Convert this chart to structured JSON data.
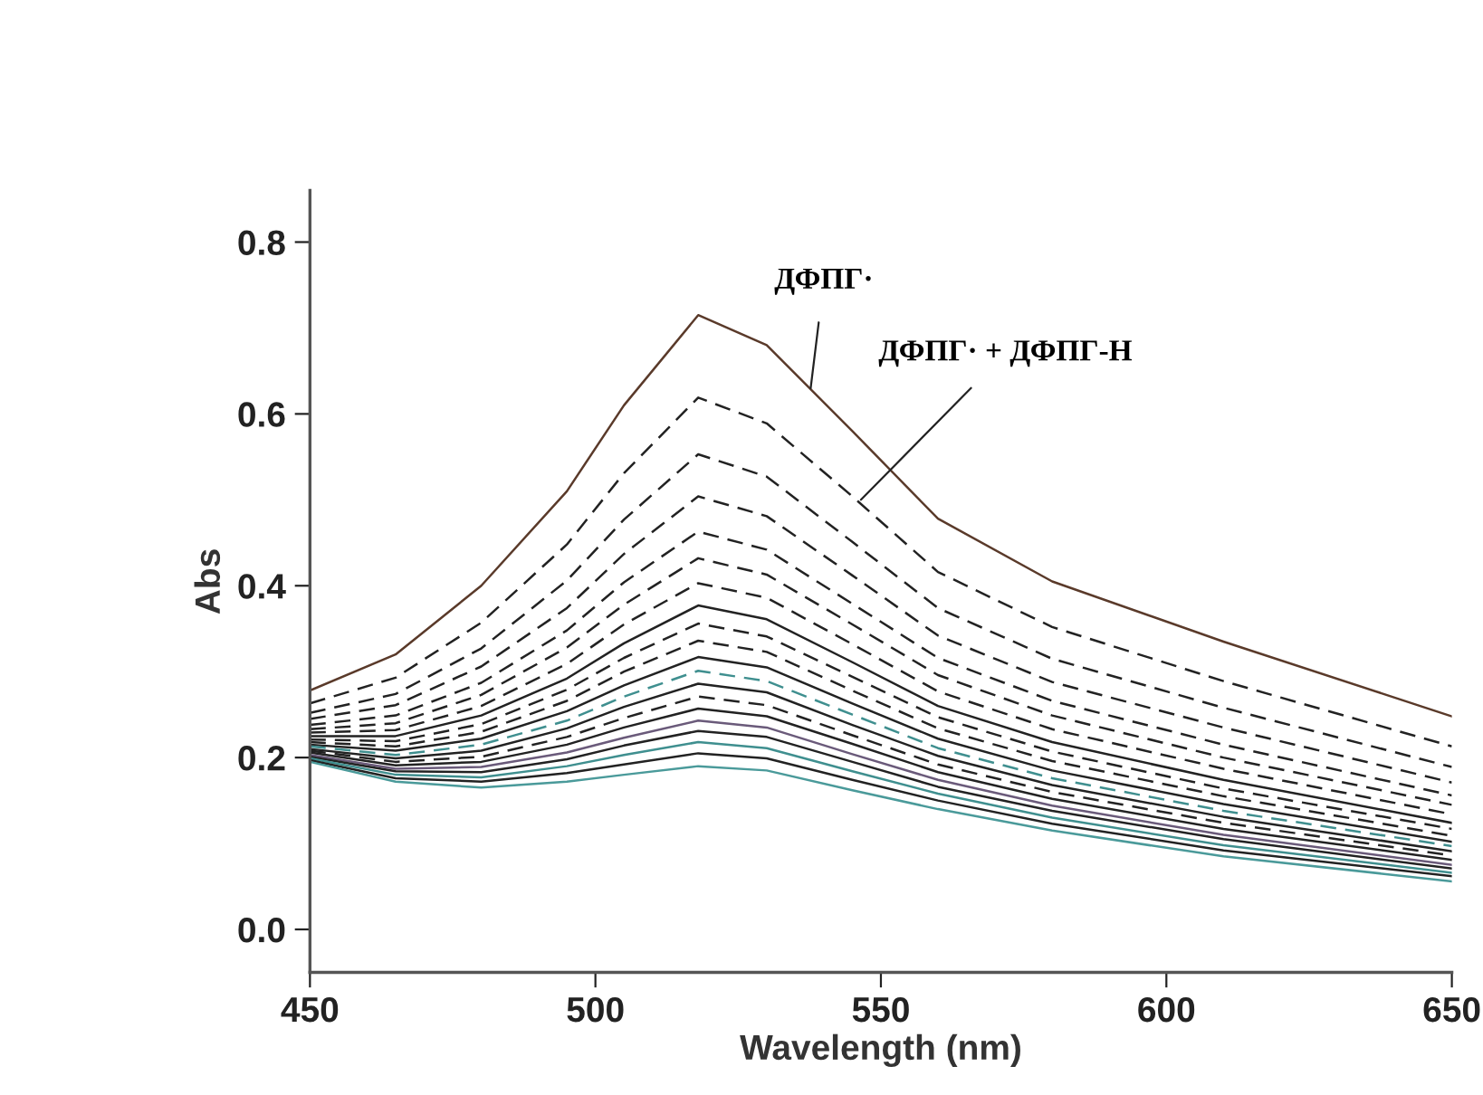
{
  "chart_data": {
    "type": "line",
    "xlabel": "Wavelength (nm)",
    "ylabel": "Abs",
    "xlim": [
      450,
      650
    ],
    "xticks": [
      450,
      500,
      550,
      600,
      650
    ],
    "ylim": [
      -0.05,
      0.86
    ],
    "yticks": [
      {
        "value": 0.0,
        "label": "0.0"
      },
      {
        "value": 0.2,
        "label": "0.2"
      },
      {
        "value": 0.4,
        "label": "0.4"
      },
      {
        "value": 0.6,
        "label": "0.6"
      },
      {
        "value": 0.8,
        "label": "0.8"
      }
    ],
    "x": [
      450,
      465,
      480,
      495,
      505,
      518,
      530,
      545,
      560,
      580,
      610,
      650
    ],
    "grid": false,
    "legend": false,
    "marker": "none",
    "series": [
      {
        "color": "#5a3a2a",
        "line_style": "solid",
        "values": [
          0.278,
          0.32,
          0.4,
          0.51,
          0.61,
          0.715,
          0.68,
          0.58,
          0.478,
          0.405,
          0.335,
          0.248
        ]
      },
      {
        "color": "#222222",
        "line_style": "dashed",
        "values": [
          0.263,
          0.293,
          0.357,
          0.448,
          0.531,
          0.619,
          0.589,
          0.504,
          0.416,
          0.352,
          0.289,
          0.213
        ]
      },
      {
        "color": "#222222",
        "line_style": "dashed",
        "values": [
          0.252,
          0.274,
          0.327,
          0.406,
          0.477,
          0.553,
          0.527,
          0.451,
          0.374,
          0.315,
          0.258,
          0.189
        ]
      },
      {
        "color": "#222222",
        "line_style": "dashed",
        "values": [
          0.245,
          0.261,
          0.306,
          0.374,
          0.437,
          0.504,
          0.481,
          0.412,
          0.342,
          0.288,
          0.235,
          0.171
        ]
      },
      {
        "color": "#222222",
        "line_style": "dashed",
        "values": [
          0.238,
          0.249,
          0.287,
          0.348,
          0.404,
          0.463,
          0.442,
          0.379,
          0.316,
          0.266,
          0.215,
          0.156
        ]
      },
      {
        "color": "#222222",
        "line_style": "dashed",
        "values": [
          0.233,
          0.24,
          0.273,
          0.328,
          0.378,
          0.432,
          0.413,
          0.355,
          0.296,
          0.249,
          0.2,
          0.145
        ]
      },
      {
        "color": "#222222",
        "line_style": "dashed",
        "values": [
          0.229,
          0.232,
          0.26,
          0.309,
          0.355,
          0.403,
          0.386,
          0.332,
          0.277,
          0.233,
          0.187,
          0.134
        ]
      },
      {
        "color": "#222222",
        "line_style": "solid",
        "values": [
          0.225,
          0.225,
          0.249,
          0.292,
          0.333,
          0.377,
          0.361,
          0.311,
          0.26,
          0.218,
          0.174,
          0.124
        ]
      },
      {
        "color": "#222222",
        "line_style": "dashed",
        "values": [
          0.221,
          0.219,
          0.239,
          0.279,
          0.316,
          0.356,
          0.341,
          0.294,
          0.247,
          0.207,
          0.164,
          0.117
        ]
      },
      {
        "color": "#222222",
        "line_style": "dashed",
        "values": [
          0.218,
          0.213,
          0.23,
          0.266,
          0.3,
          0.336,
          0.323,
          0.278,
          0.234,
          0.196,
          0.155,
          0.109
        ]
      },
      {
        "color": "#222222",
        "line_style": "solid",
        "values": [
          0.215,
          0.208,
          0.222,
          0.254,
          0.284,
          0.317,
          0.305,
          0.263,
          0.222,
          0.185,
          0.146,
          0.102
        ]
      },
      {
        "color": "#3f8f8f",
        "line_style": "dashed",
        "values": [
          0.213,
          0.203,
          0.215,
          0.243,
          0.271,
          0.301,
          0.289,
          0.25,
          0.211,
          0.176,
          0.138,
          0.097
        ]
      },
      {
        "color": "#222222",
        "line_style": "solid",
        "values": [
          0.21,
          0.199,
          0.208,
          0.234,
          0.259,
          0.286,
          0.276,
          0.238,
          0.202,
          0.168,
          0.131,
          0.091
        ]
      },
      {
        "color": "#222222",
        "line_style": "dashed",
        "values": [
          0.208,
          0.195,
          0.201,
          0.224,
          0.246,
          0.271,
          0.261,
          0.226,
          0.192,
          0.16,
          0.124,
          0.086
        ]
      },
      {
        "color": "#222222",
        "line_style": "solid",
        "values": [
          0.206,
          0.191,
          0.195,
          0.215,
          0.235,
          0.257,
          0.248,
          0.216,
          0.183,
          0.152,
          0.117,
          0.081
        ]
      },
      {
        "color": "#6a5a7a",
        "line_style": "solid",
        "values": [
          0.203,
          0.187,
          0.189,
          0.206,
          0.223,
          0.243,
          0.235,
          0.204,
          0.174,
          0.144,
          0.11,
          0.075
        ]
      },
      {
        "color": "#222222",
        "line_style": "solid",
        "values": [
          0.201,
          0.184,
          0.183,
          0.198,
          0.214,
          0.231,
          0.224,
          0.195,
          0.166,
          0.138,
          0.105,
          0.071
        ]
      },
      {
        "color": "#3f8f8f",
        "line_style": "solid",
        "values": [
          0.199,
          0.18,
          0.177,
          0.19,
          0.203,
          0.218,
          0.211,
          0.184,
          0.158,
          0.13,
          0.098,
          0.066
        ]
      },
      {
        "color": "#222222",
        "line_style": "solid",
        "values": [
          0.197,
          0.176,
          0.172,
          0.182,
          0.192,
          0.205,
          0.199,
          0.174,
          0.15,
          0.123,
          0.092,
          0.062
        ]
      },
      {
        "color": "#4a9a9a",
        "line_style": "solid",
        "values": [
          0.195,
          0.172,
          0.165,
          0.172,
          0.18,
          0.19,
          0.185,
          0.162,
          0.14,
          0.115,
          0.085,
          0.056
        ]
      }
    ],
    "annotations": [
      {
        "text": "ДФПГ·",
        "x": 537.7,
        "y": 0.63
      },
      {
        "text": "ДФПГ· + ДФПГ-Н",
        "x": 546.5,
        "y": 0.5
      }
    ]
  }
}
